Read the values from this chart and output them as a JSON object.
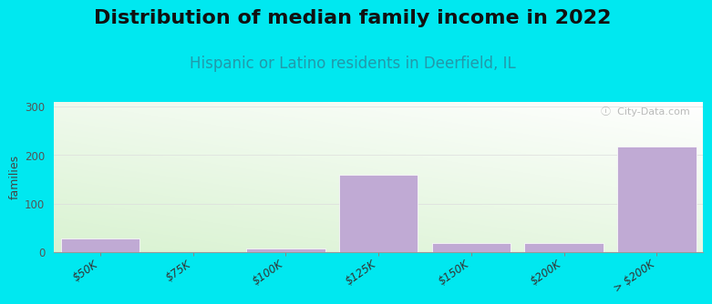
{
  "title": "Distribution of median family income in 2022",
  "subtitle": "Hispanic or Latino residents in Deerfield, IL",
  "categories": [
    "$50K",
    "$75K",
    "$100K",
    "$125K",
    "$150K",
    "$200K",
    "> $200K"
  ],
  "values": [
    28,
    0,
    8,
    160,
    18,
    18,
    218
  ],
  "bar_color": "#c0aad4",
  "bar_edge_color": "#ffffff",
  "background_outer": "#00e8f0",
  "ylabel": "families",
  "ylim": [
    0,
    310
  ],
  "yticks": [
    0,
    100,
    200,
    300
  ],
  "watermark": "ⓘ  City-Data.com",
  "title_fontsize": 16,
  "subtitle_fontsize": 12,
  "bar_width": 0.85
}
